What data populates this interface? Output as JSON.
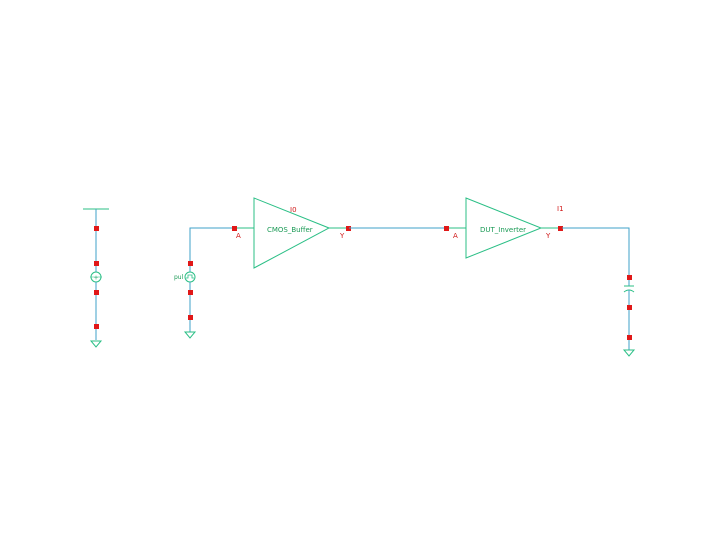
{
  "instances": [
    {
      "id": "buffer",
      "name": "CMOS_Buffer",
      "input_pin": "A",
      "output_pin": "Y",
      "instance_label": "I0"
    },
    {
      "id": "inverter",
      "name": "DUT_Inverter",
      "input_pin": "A",
      "output_pin": "Y",
      "instance_label": "I1"
    }
  ],
  "sources": {
    "pulse_label": "pul"
  },
  "colors": {
    "wire": "#3fa2c8",
    "symbol": "#2bbf86",
    "pin": "#e01818"
  },
  "icons": [
    "vdc-source-icon",
    "pulse-source-icon",
    "capacitor-icon",
    "ground-icon",
    "vdd-rail-icon"
  ]
}
